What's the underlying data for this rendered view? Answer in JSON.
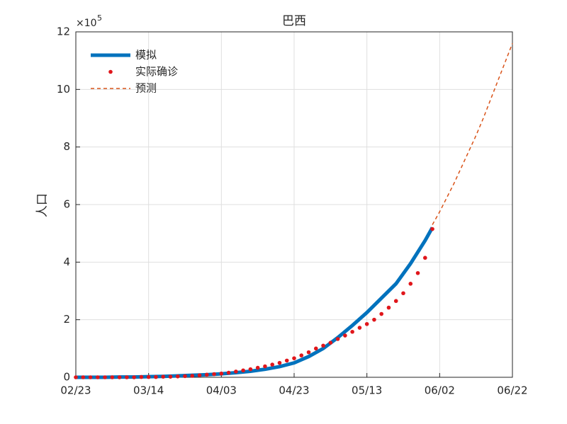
{
  "chart_data": {
    "type": "line",
    "title": "巴西",
    "y_label": "人口",
    "y_exponent_base": "×10",
    "y_exponent_power": "5",
    "xlim": [
      0,
      120
    ],
    "xticks": [
      {
        "value": 0,
        "label": "02/23"
      },
      {
        "value": 20,
        "label": "03/14"
      },
      {
        "value": 40,
        "label": "04/03"
      },
      {
        "value": 60,
        "label": "04/23"
      },
      {
        "value": 80,
        "label": "05/13"
      },
      {
        "value": 100,
        "label": "06/02"
      },
      {
        "value": 120,
        "label": "06/22"
      }
    ],
    "ylim": [
      0,
      12
    ],
    "yticks": [
      0,
      2,
      4,
      6,
      8,
      10,
      12
    ],
    "grid": true,
    "legend": "upper-left",
    "series": [
      {
        "name": "模拟",
        "style": "line",
        "color": "#0072bd",
        "x": [
          0,
          4,
          8,
          12,
          16,
          20,
          24,
          28,
          32,
          36,
          40,
          44,
          48,
          52,
          56,
          60,
          64,
          68,
          72,
          76,
          80,
          84,
          88,
          92,
          96,
          98
        ],
        "values": [
          0,
          0,
          0,
          0.01,
          0.01,
          0.02,
          0.03,
          0.05,
          0.07,
          0.09,
          0.12,
          0.16,
          0.21,
          0.28,
          0.37,
          0.5,
          0.72,
          1.0,
          1.38,
          1.8,
          2.25,
          2.75,
          3.25,
          3.95,
          4.75,
          5.2
        ]
      },
      {
        "name": "实际确诊",
        "style": "dots",
        "color": "#e0161b",
        "x": [
          0,
          2,
          4,
          6,
          8,
          10,
          12,
          14,
          16,
          18,
          20,
          22,
          24,
          26,
          28,
          30,
          32,
          34,
          36,
          38,
          40,
          42,
          44,
          46,
          48,
          50,
          52,
          54,
          56,
          58,
          60,
          62,
          64,
          66,
          68,
          70,
          72,
          74,
          76,
          78,
          80,
          82,
          84,
          86,
          88,
          90,
          92,
          94,
          96,
          98
        ],
        "values": [
          0,
          0,
          0,
          0,
          0,
          0,
          0,
          0,
          0,
          0.01,
          0.01,
          0.01,
          0.02,
          0.02,
          0.03,
          0.04,
          0.05,
          0.07,
          0.09,
          0.11,
          0.13,
          0.16,
          0.2,
          0.24,
          0.28,
          0.33,
          0.38,
          0.44,
          0.5,
          0.58,
          0.66,
          0.76,
          0.87,
          1.0,
          1.1,
          1.2,
          1.33,
          1.45,
          1.58,
          1.72,
          1.85,
          2.0,
          2.2,
          2.42,
          2.65,
          2.92,
          3.25,
          3.62,
          4.15,
          5.15
        ]
      },
      {
        "name": "预测",
        "style": "dashed",
        "color": "#d95319",
        "x": [
          98,
          100,
          102,
          104,
          106,
          108,
          110,
          112,
          114,
          116,
          118,
          120
        ],
        "values": [
          5.3,
          5.75,
          6.25,
          6.75,
          7.3,
          7.85,
          8.4,
          9.0,
          9.65,
          10.3,
          10.95,
          11.6
        ]
      }
    ]
  }
}
